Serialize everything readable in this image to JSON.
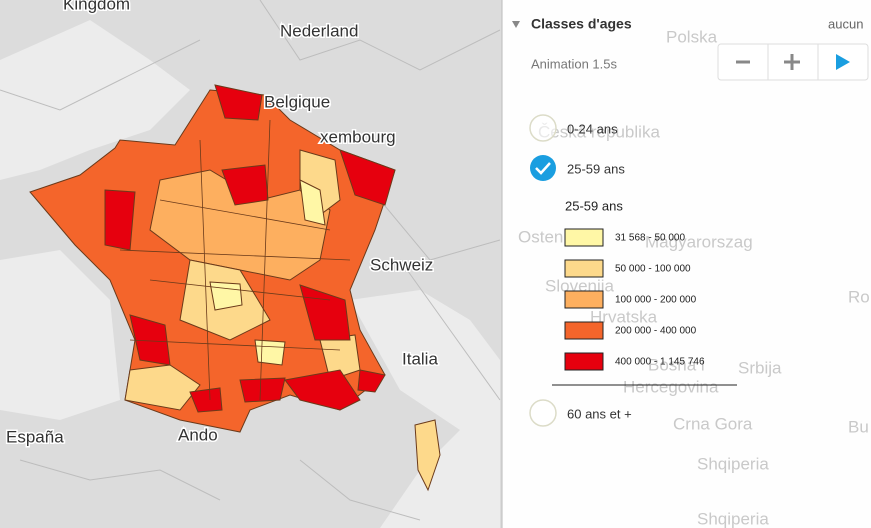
{
  "map": {
    "labels": [
      "Kingdom",
      "Nederland",
      "Belgique",
      "xembourg",
      "Schweiz",
      "Italia",
      "España",
      "Ando"
    ]
  },
  "background_labels": [
    "Polska",
    "Česká republika",
    "Magyarorszag",
    "Osten",
    "Slovenija",
    "Hrvatska",
    "Srbija",
    "Bosna i",
    "Hercegovina",
    "Crna Gora",
    "Shqiperia",
    "Shqiperia",
    "Ro",
    "Bu"
  ],
  "panel": {
    "title": "Classes d'ages",
    "aucun": "aucun",
    "animation": "Animation 1.5s",
    "options": [
      {
        "label": "0-24 ans",
        "checked": false
      },
      {
        "label": "25-59 ans",
        "checked": true
      },
      {
        "label": "60 ans et +",
        "checked": false
      }
    ],
    "legend": {
      "title": "25-59 ans",
      "items": [
        {
          "label": "31 568 - 50 000",
          "color": "#fff7a6"
        },
        {
          "label": "50 000 - 100 000",
          "color": "#fdd98b"
        },
        {
          "label": "100 000 - 200 000",
          "color": "#fdaf5f"
        },
        {
          "label": "200 000 - 400 000",
          "color": "#f4652b"
        },
        {
          "label": "400 000 - 1 145 746",
          "color": "#e6000e"
        }
      ]
    }
  }
}
